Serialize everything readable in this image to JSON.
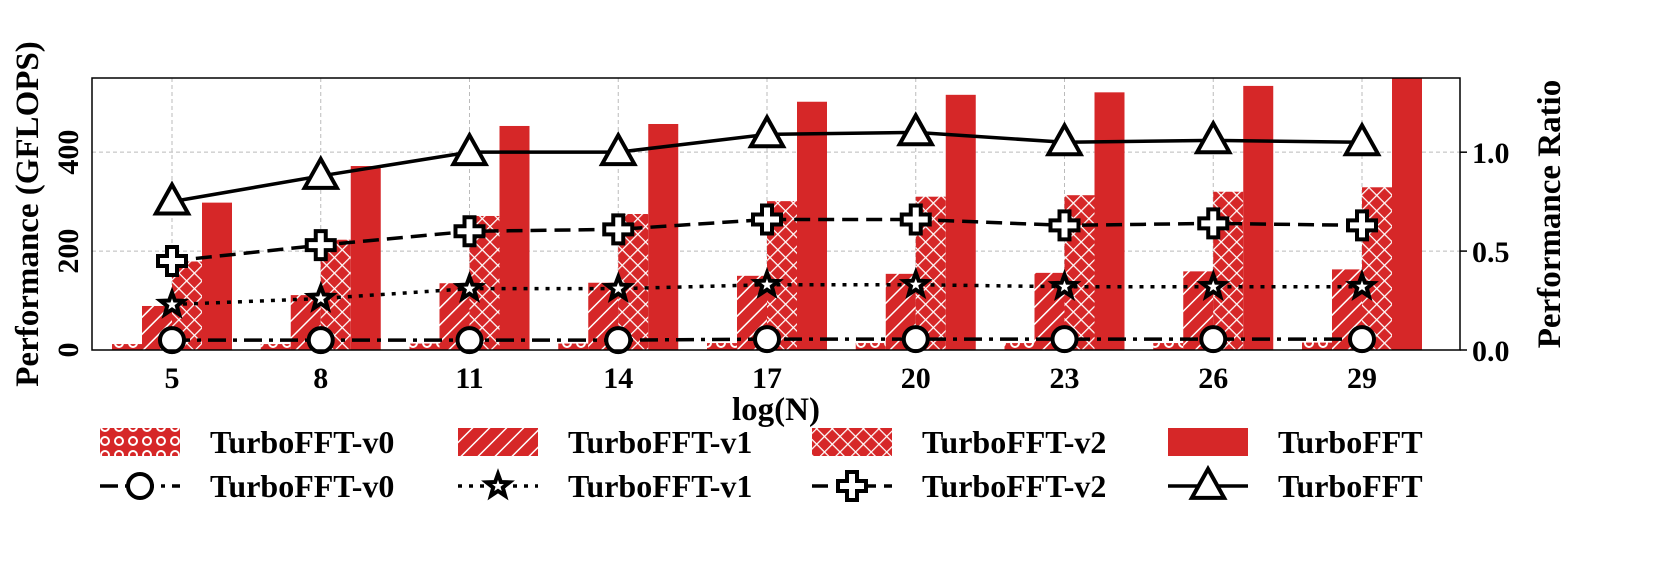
{
  "chart_data": {
    "type": "bar+line",
    "xlabel": "log(N)",
    "ylabel": "Performance (GFLOPS)",
    "y2label": "Performance Ratio",
    "categories": [
      5,
      8,
      11,
      14,
      17,
      20,
      23,
      26,
      29
    ],
    "ylim": [
      0,
      550
    ],
    "yticks": [
      0,
      200,
      400
    ],
    "y2lim": [
      0,
      1.375
    ],
    "y2ticks": [
      "0.0",
      "0.5",
      "1.0"
    ],
    "grid": true,
    "legend_placement": "bottom",
    "bar_color": "#d62728",
    "bar_series": [
      {
        "name": "TurboFFT-v0",
        "pattern": "circles",
        "values": [
          12,
          12,
          13,
          13,
          14,
          14,
          14,
          14,
          15
        ]
      },
      {
        "name": "TurboFFT-v1",
        "pattern": "diagonal-hatch",
        "values": [
          89,
          111,
          135,
          136,
          150,
          154,
          156,
          159,
          163
        ]
      },
      {
        "name": "TurboFFT-v2",
        "pattern": "cross-hatch",
        "values": [
          179,
          223,
          271,
          275,
          301,
          310,
          313,
          320,
          329
        ]
      },
      {
        "name": "TurboFFT",
        "pattern": "solid",
        "values": [
          298,
          372,
          453,
          457,
          502,
          516,
          521,
          534,
          560
        ]
      }
    ],
    "line_series": [
      {
        "name": "TurboFFT-v0",
        "marker": "circle",
        "dash": "dashdot",
        "values": [
          0.05,
          0.05,
          0.05,
          0.05,
          0.055,
          0.055,
          0.055,
          0.055,
          0.055
        ]
      },
      {
        "name": "TurboFFT-v1",
        "marker": "star",
        "dash": "dotted",
        "values": [
          0.23,
          0.26,
          0.31,
          0.31,
          0.33,
          0.33,
          0.32,
          0.32,
          0.32
        ]
      },
      {
        "name": "TurboFFT-v2",
        "marker": "plus",
        "dash": "dashed",
        "values": [
          0.45,
          0.53,
          0.6,
          0.61,
          0.66,
          0.66,
          0.63,
          0.64,
          0.63
        ]
      },
      {
        "name": "TurboFFT",
        "marker": "triangle",
        "dash": "solid",
        "values": [
          0.75,
          0.88,
          1.0,
          1.0,
          1.09,
          1.1,
          1.05,
          1.06,
          1.05
        ]
      }
    ]
  }
}
